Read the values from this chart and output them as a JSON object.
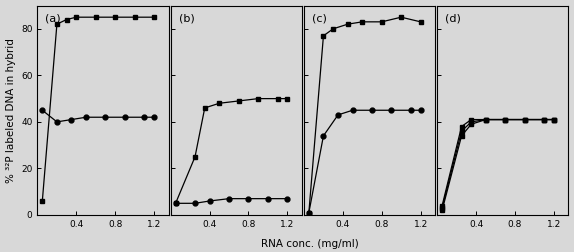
{
  "panels": [
    "(a)",
    "(b)",
    "(c)",
    "(d)"
  ],
  "xlabel": "RNA conc. (mg/ml)",
  "ylabel": "% ³²P labeled DNA in hybrid",
  "ylim": [
    0,
    90
  ],
  "yticks": [
    0,
    20,
    40,
    60,
    80
  ],
  "xticks": [
    0.4,
    0.8,
    1.2
  ],
  "xticklabels": [
    "0.4",
    "0.8",
    "1.2"
  ],
  "xlim": [
    0.0,
    1.35
  ],
  "panel_data": [
    {
      "label": "(a)",
      "curves": [
        {
          "x": [
            0.05,
            0.2,
            0.3,
            0.4,
            0.6,
            0.8,
            1.0,
            1.2
          ],
          "y": [
            6,
            82,
            84,
            85,
            85,
            85,
            85,
            85
          ],
          "marker": "s"
        },
        {
          "x": [
            0.05,
            0.2,
            0.35,
            0.5,
            0.7,
            0.9,
            1.1,
            1.2
          ],
          "y": [
            45,
            40,
            41,
            42,
            42,
            42,
            42,
            42
          ],
          "marker": "o"
        }
      ]
    },
    {
      "label": "(b)",
      "curves": [
        {
          "x": [
            0.05,
            0.25,
            0.35,
            0.5,
            0.7,
            0.9,
            1.1,
            1.2
          ],
          "y": [
            5,
            25,
            46,
            48,
            49,
            50,
            50,
            50
          ],
          "marker": "s"
        },
        {
          "x": [
            0.05,
            0.25,
            0.4,
            0.6,
            0.8,
            1.0,
            1.2
          ],
          "y": [
            5,
            5,
            6,
            7,
            7,
            7,
            7
          ],
          "marker": "o"
        }
      ]
    },
    {
      "label": "(c)",
      "curves": [
        {
          "x": [
            0.05,
            0.2,
            0.3,
            0.45,
            0.6,
            0.8,
            1.0,
            1.2
          ],
          "y": [
            1,
            77,
            80,
            82,
            83,
            83,
            85,
            83
          ],
          "marker": "s"
        },
        {
          "x": [
            0.05,
            0.2,
            0.35,
            0.5,
            0.7,
            0.9,
            1.1,
            1.2
          ],
          "y": [
            1,
            34,
            43,
            45,
            45,
            45,
            45,
            45
          ],
          "marker": "o"
        }
      ]
    },
    {
      "label": "(d)",
      "curves": [
        {
          "x": [
            0.05,
            0.25,
            0.35,
            0.5,
            0.7,
            0.9,
            1.1,
            1.2
          ],
          "y": [
            4,
            38,
            41,
            41,
            41,
            41,
            41,
            41
          ],
          "marker": "s"
        },
        {
          "x": [
            0.05,
            0.25,
            0.35,
            0.5,
            0.7,
            0.9,
            1.1,
            1.2
          ],
          "y": [
            3,
            36,
            40,
            41,
            41,
            41,
            41,
            41
          ],
          "marker": "s"
        },
        {
          "x": [
            0.05,
            0.25,
            0.35,
            0.5,
            0.7,
            0.9,
            1.1,
            1.2
          ],
          "y": [
            2,
            34,
            39,
            41,
            41,
            41,
            41,
            41
          ],
          "marker": "s"
        }
      ]
    }
  ],
  "markersize": 3.5,
  "linewidth": 0.9,
  "color": "black",
  "bg_color": "#d8d8d8",
  "title_fontsize": 8,
  "label_fontsize": 7.5,
  "tick_fontsize": 6.5
}
